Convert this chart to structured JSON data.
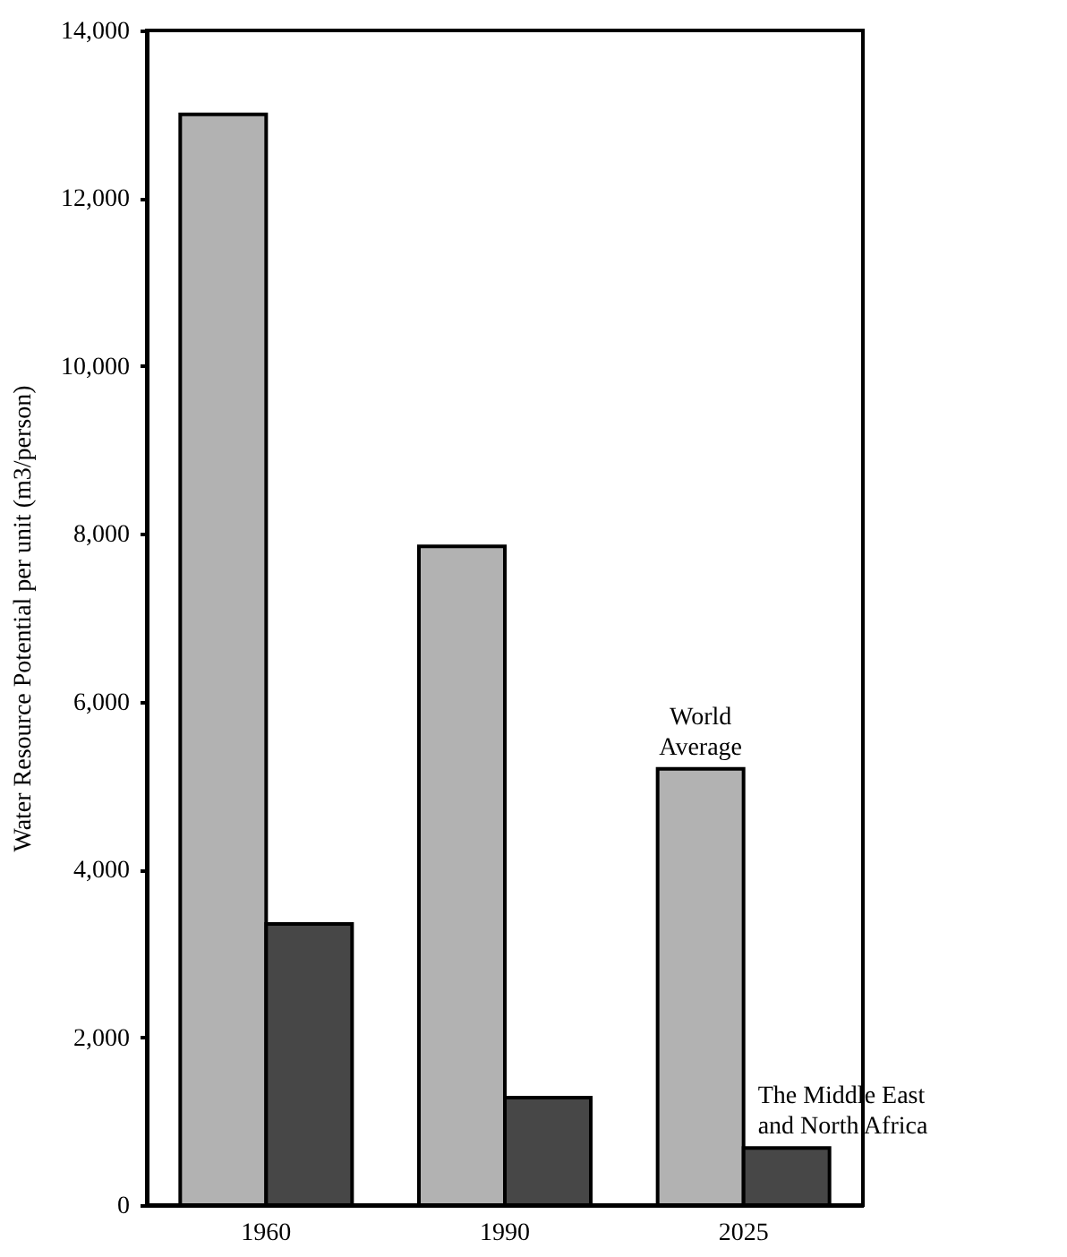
{
  "chart_data": {
    "type": "bar",
    "ylabel": "Water Resource Potential per unit (m3/person)",
    "categories": [
      "1960",
      "1990",
      "2025"
    ],
    "series": [
      {
        "name": "World Average",
        "color": "#b2b2b2",
        "values": [
          13000,
          7850,
          5200
        ]
      },
      {
        "name": "The Middle East and North Africa",
        "color": "#474747",
        "values": [
          3350,
          1280,
          680
        ]
      }
    ],
    "ylim": [
      0,
      14000
    ],
    "yticks": [
      {
        "value": 0,
        "label": "0"
      },
      {
        "value": 2000,
        "label": "2,000"
      },
      {
        "value": 4000,
        "label": "4,000"
      },
      {
        "value": 6000,
        "label": "6,000"
      },
      {
        "value": 8000,
        "label": "8,000"
      },
      {
        "value": 10000,
        "label": "10,000"
      },
      {
        "value": 12000,
        "label": "12,000"
      },
      {
        "value": 14000,
        "label": "14,000"
      }
    ],
    "grid": false,
    "legend": false
  }
}
